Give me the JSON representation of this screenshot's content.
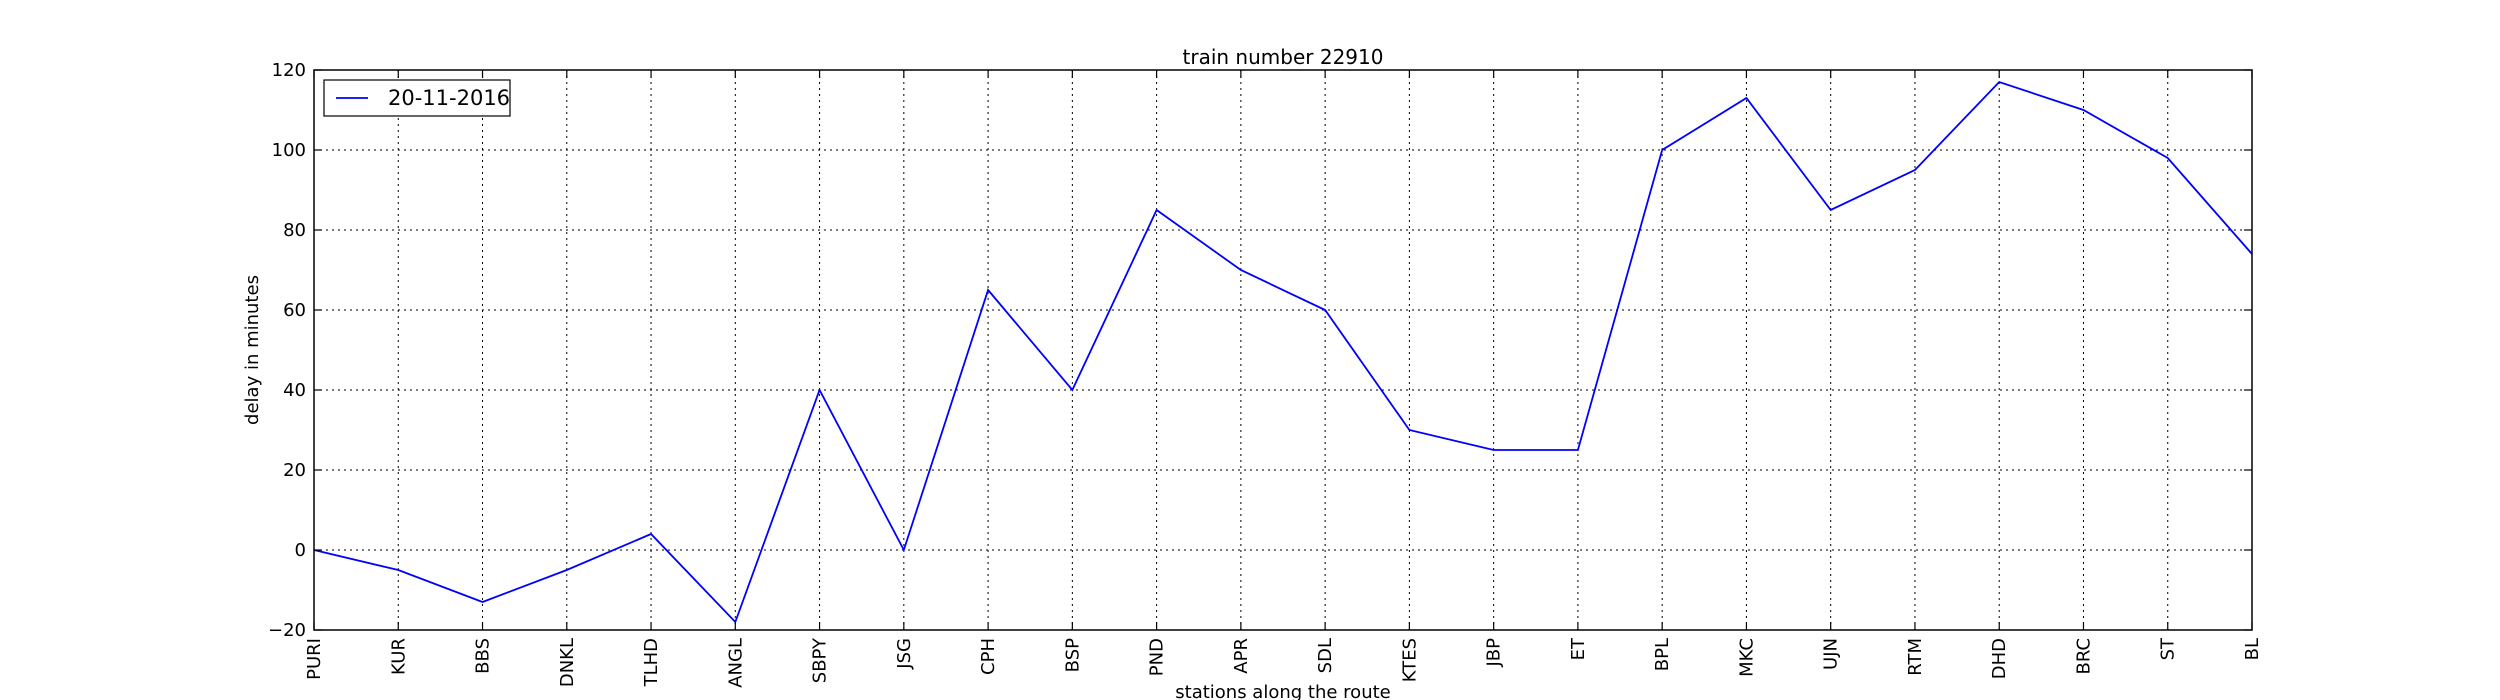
{
  "chart_data": {
    "type": "line",
    "title": "train number 22910",
    "xlabel": "stations along the route",
    "ylabel": "delay in minutes",
    "categories": [
      "PURI",
      "KUR",
      "BBS",
      "DNKL",
      "TLHD",
      "ANGL",
      "SBPY",
      "JSG",
      "CPH",
      "BSP",
      "PND",
      "APR",
      "SDL",
      "KTES",
      "JBP",
      "ET",
      "BPL",
      "MKC",
      "UJN",
      "RTM",
      "DHD",
      "BRC",
      "ST",
      "BL"
    ],
    "series": [
      {
        "name": "20-11-2016",
        "color": "#0000ff",
        "values": [
          0,
          -5,
          -13,
          -5,
          4,
          -18,
          40,
          0,
          65,
          40,
          85,
          70,
          60,
          30,
          25,
          25,
          100,
          113,
          85,
          95,
          117,
          110,
          98,
          74
        ]
      }
    ],
    "yticks": [
      -20,
      0,
      20,
      40,
      60,
      80,
      100,
      120
    ],
    "ylim": [
      -20,
      120
    ],
    "grid": true,
    "grid_style": "dotted",
    "legend_position": "top-left"
  }
}
